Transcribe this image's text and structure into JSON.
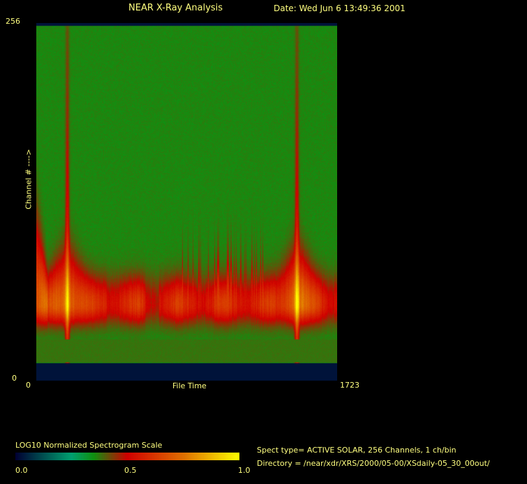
{
  "header": {
    "title": "NEAR X-Ray Analysis",
    "date": "Date: Wed Jun  6 13:49:36 2001"
  },
  "chart_data": {
    "type": "heatmap",
    "xlabel": "File Time",
    "ylabel": "Channel # ---->",
    "xlim": [
      0,
      1723
    ],
    "ylim": [
      0,
      256
    ],
    "x_ticks": [
      "0",
      "1723"
    ],
    "y_ticks": [
      "0",
      "256"
    ],
    "no_data_channels": [
      0,
      13
    ],
    "emission_band_channels": [
      38,
      72
    ],
    "flare_file_times": [
      176,
      1491
    ],
    "colorbar": {
      "title": "LOG10 Normalized Spectrogram Scale",
      "range": [
        0,
        1
      ],
      "tick_labels": [
        "0.0",
        "0.5",
        "1.0"
      ],
      "colors": [
        "#000033",
        "#00a070",
        "#109010",
        "#d00000",
        "#e07000",
        "#ffff00"
      ]
    }
  },
  "info": {
    "spect_type": "Spect type= ACTIVE SOLAR,  256 Channels,        1 ch/bin",
    "directory": "Directory = /near/xdr/XRS/2000/05-00/XSdaily-05_30_00out/"
  }
}
